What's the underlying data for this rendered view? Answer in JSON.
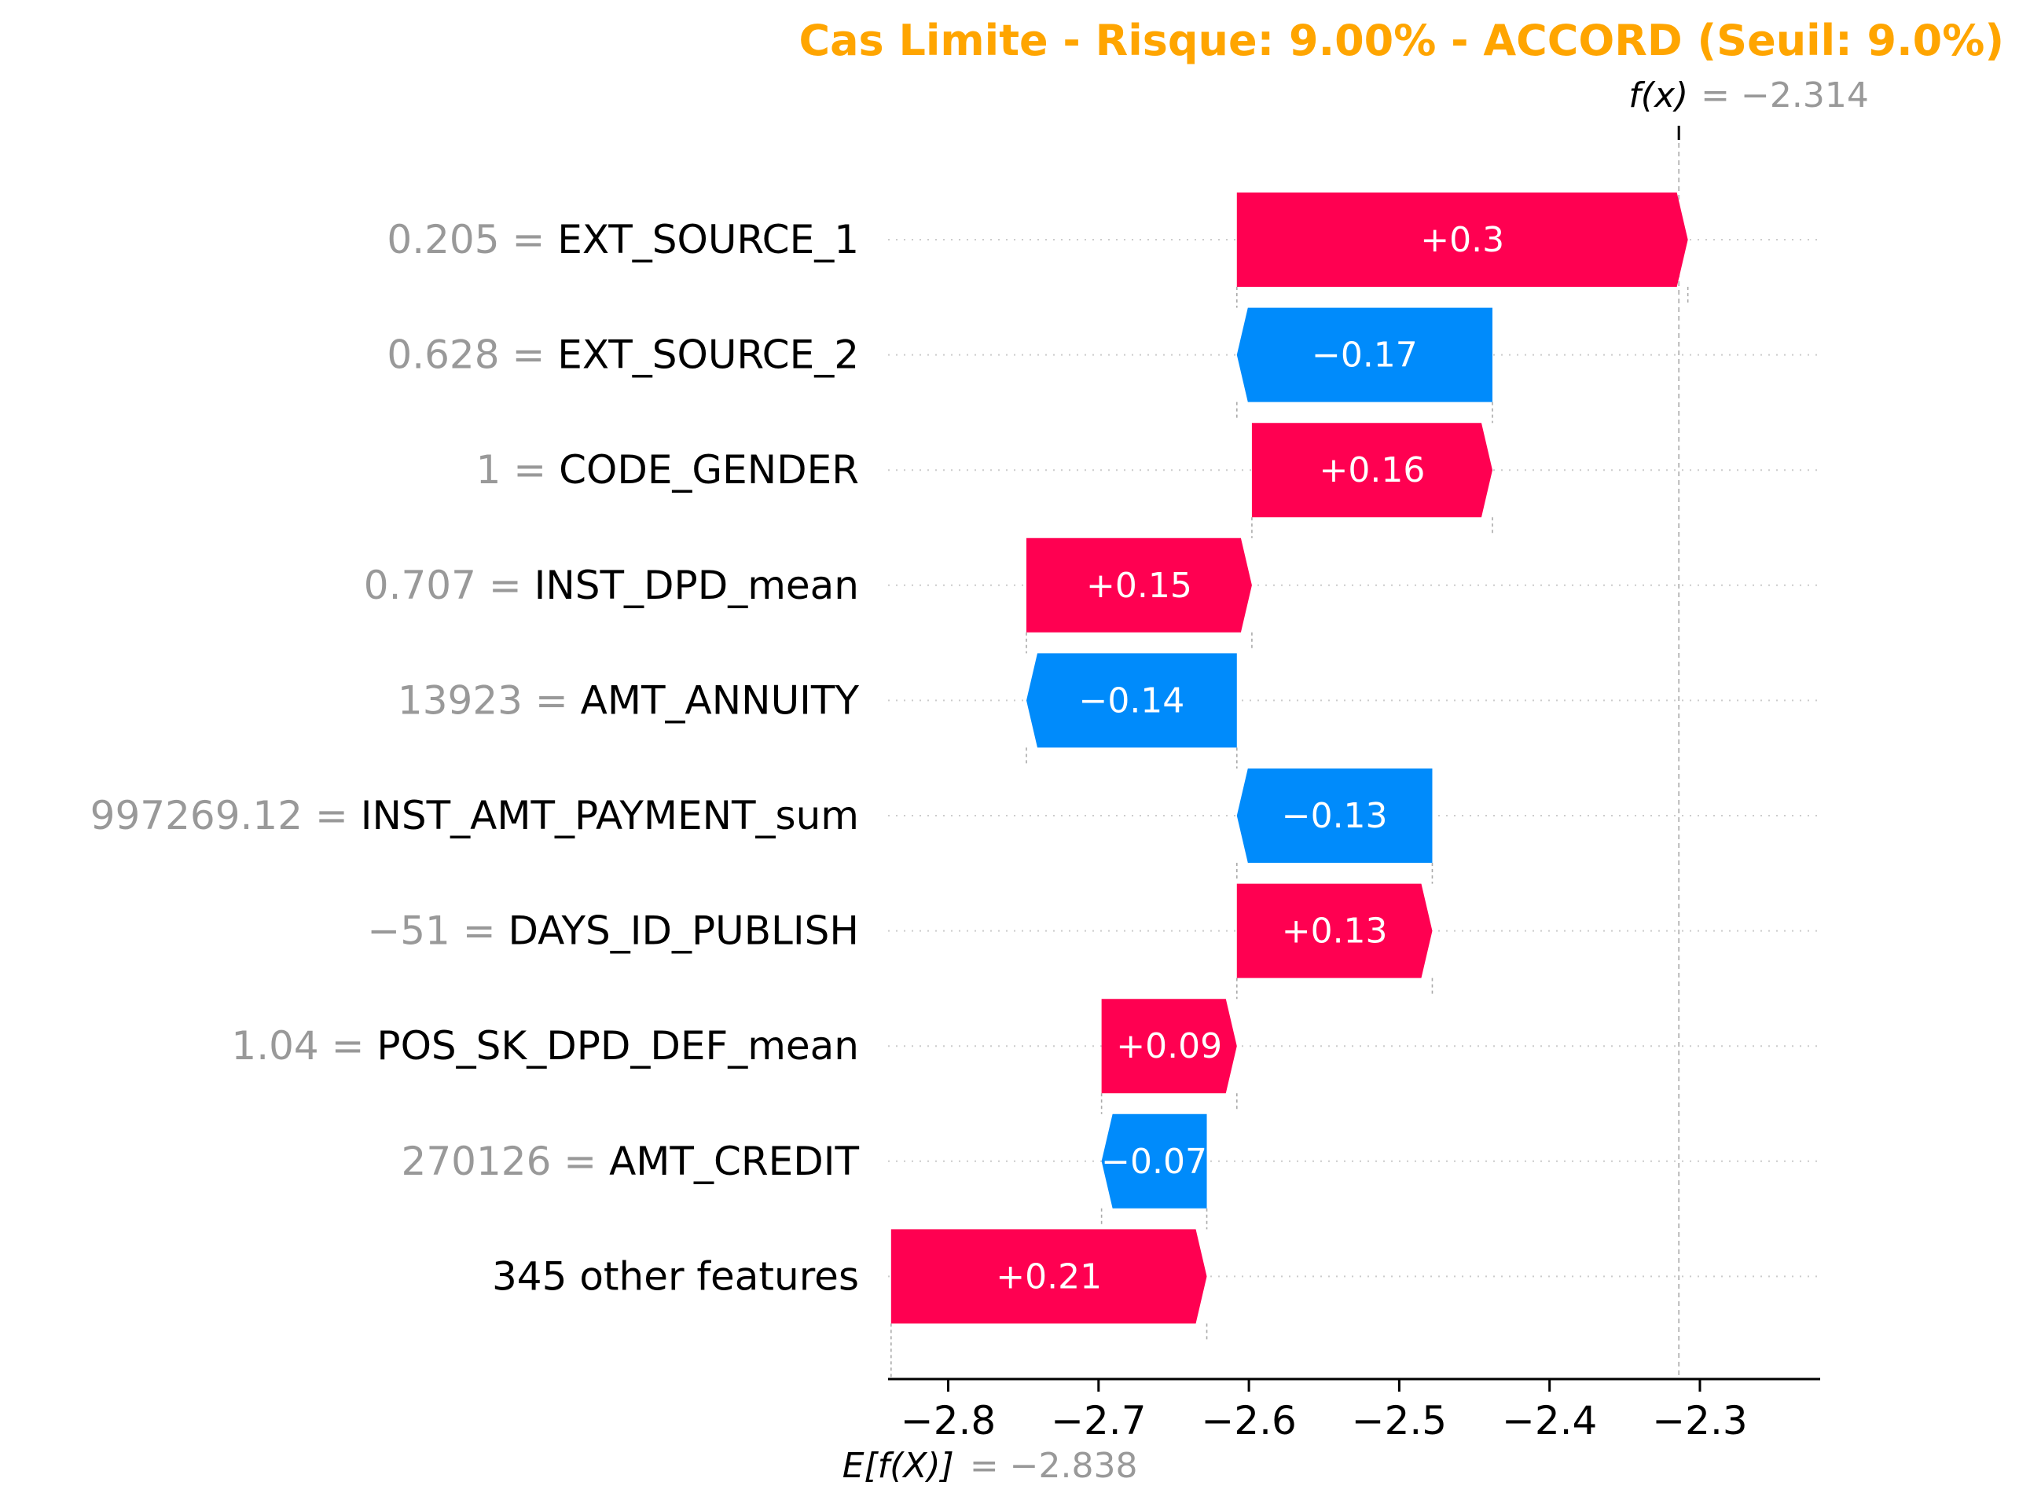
{
  "colors": {
    "positive": "#ff0051",
    "negative": "#008bfb",
    "title": "#ffa500",
    "value_grey": "#999999",
    "text": "#000000",
    "gridline": "#cccccc"
  },
  "chart_data": {
    "type": "waterfall",
    "title": "Cas Limite - Risque: 9.00% - ACCORD (Seuil: 9.0%)",
    "fx_label": "f(x)",
    "fx_value": "= −2.314",
    "fx": -2.314,
    "efx_label": "E[f(X)]",
    "efx_value": "= −2.838",
    "efx": -2.838,
    "xlim": [
      -2.84,
      -2.22
    ],
    "ticks": [
      -2.8,
      -2.7,
      -2.6,
      -2.5,
      -2.4,
      -2.3
    ],
    "tick_labels": [
      "−2.8",
      "−2.7",
      "−2.6",
      "−2.5",
      "−2.4",
      "−2.3"
    ],
    "features": [
      {
        "value": "0.205",
        "name": "EXT_SOURCE_1",
        "contribution": 0.3,
        "label": "+0.3"
      },
      {
        "value": "0.628",
        "name": "EXT_SOURCE_2",
        "contribution": -0.17,
        "label": "−0.17"
      },
      {
        "value": "1",
        "name": "CODE_GENDER",
        "contribution": 0.16,
        "label": "+0.16"
      },
      {
        "value": "0.707",
        "name": "INST_DPD_mean",
        "contribution": 0.15,
        "label": "+0.15"
      },
      {
        "value": "13923",
        "name": "AMT_ANNUITY",
        "contribution": -0.14,
        "label": "−0.14"
      },
      {
        "value": "997269.12",
        "name": "INST_AMT_PAYMENT_sum",
        "contribution": -0.13,
        "label": "−0.13"
      },
      {
        "value": "−51",
        "name": "DAYS_ID_PUBLISH",
        "contribution": 0.13,
        "label": "+0.13"
      },
      {
        "value": "1.04",
        "name": "POS_SK_DPD_DEF_mean",
        "contribution": 0.09,
        "label": "+0.09"
      },
      {
        "value": "270126",
        "name": "AMT_CREDIT",
        "contribution": -0.07,
        "label": "−0.07"
      },
      {
        "value": "",
        "name": "345 other features",
        "contribution": 0.21,
        "label": "+0.21"
      }
    ]
  }
}
